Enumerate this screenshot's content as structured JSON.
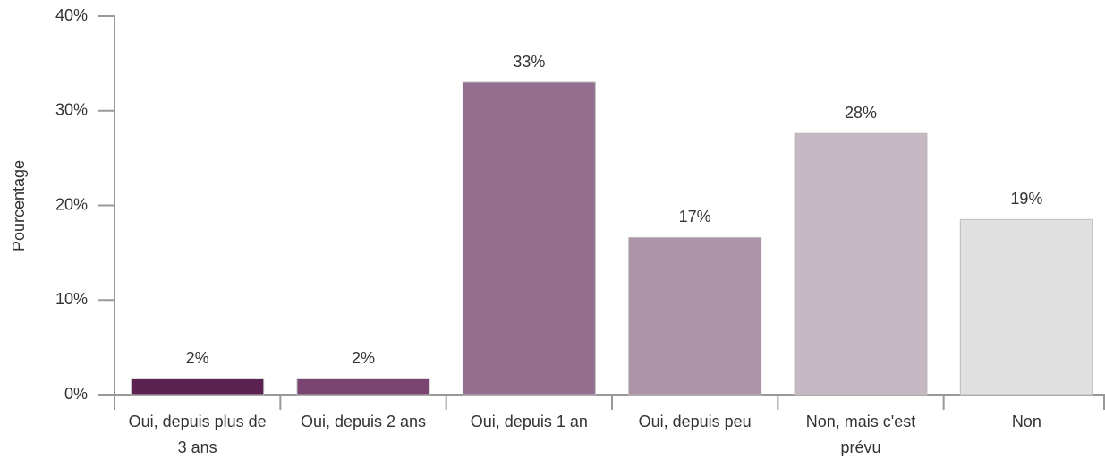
{
  "chart_data": {
    "type": "bar",
    "y_label": "Pourcentage",
    "categories": [
      "Oui, depuis plus de 3 ans",
      "Oui, depuis 2 ans",
      "Oui, depuis 1 an",
      "Oui, depuis peu",
      "Non, mais c'est prévu",
      "Non"
    ],
    "values": [
      1.7,
      1.7,
      33.0,
      16.6,
      27.6,
      18.5
    ],
    "value_labels": [
      "2%",
      "2%",
      "33%",
      "17%",
      "28%",
      "19%"
    ],
    "colors": [
      "#5c2352",
      "#794470",
      "#946e8e",
      "#ad94a8",
      "#c6b8c3",
      "#e0e0e0"
    ],
    "ylim": [
      0,
      40
    ],
    "yticks": [
      {
        "value": 0,
        "label": "0%"
      },
      {
        "value": 10,
        "label": "10%"
      },
      {
        "value": 20,
        "label": "20%"
      },
      {
        "value": 30,
        "label": "30%"
      },
      {
        "value": 40,
        "label": "40%"
      }
    ]
  }
}
